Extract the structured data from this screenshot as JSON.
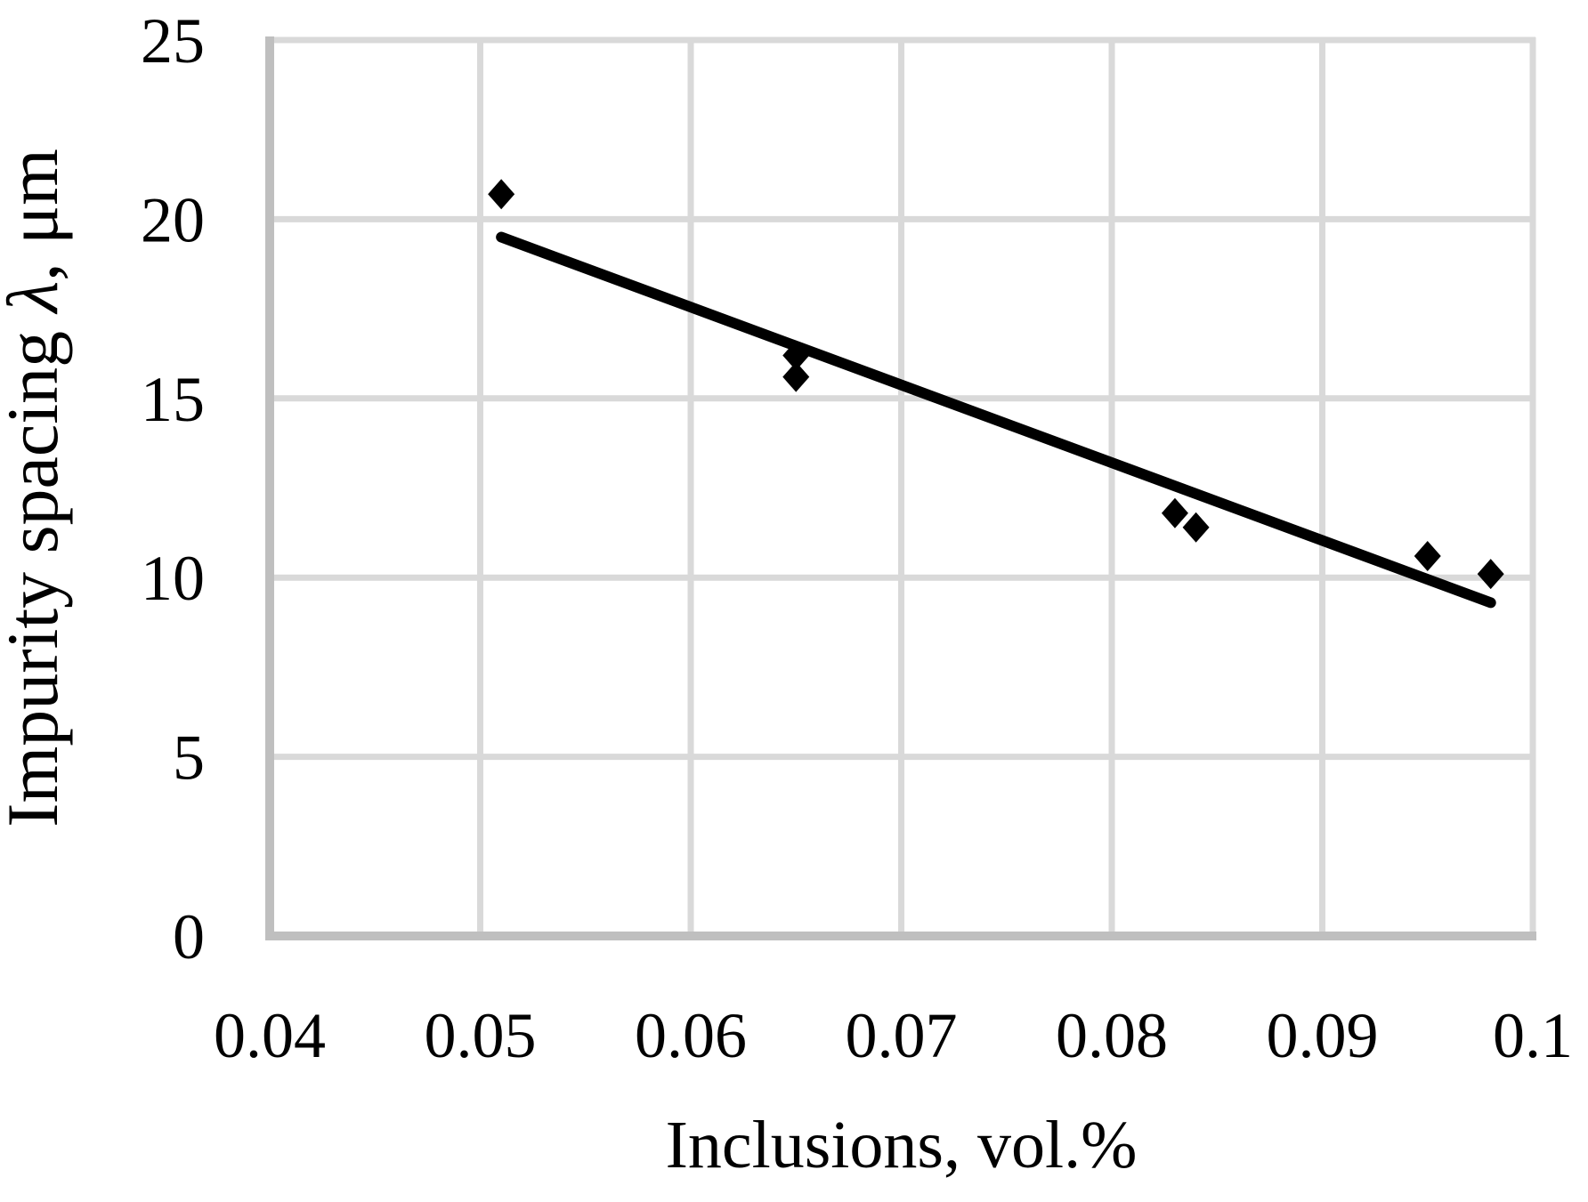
{
  "chart_data": {
    "type": "scatter",
    "title": "",
    "xlabel": "Inclusions, vol.%",
    "ylabel": "Impurity spacing λ, μm",
    "ylabel_parts": {
      "prefix": "Impurity spacing ",
      "lambda": "λ",
      "suffix": ", μm"
    },
    "points": [
      {
        "x": 0.051,
        "y": 20.7
      },
      {
        "x": 0.065,
        "y": 16.2
      },
      {
        "x": 0.065,
        "y": 15.6
      },
      {
        "x": 0.083,
        "y": 11.8
      },
      {
        "x": 0.084,
        "y": 11.4
      },
      {
        "x": 0.095,
        "y": 10.6
      },
      {
        "x": 0.098,
        "y": 10.1
      }
    ],
    "trendline": {
      "x1": 0.051,
      "y1": 19.5,
      "x2": 0.098,
      "y2": 9.3
    },
    "xlim": [
      0.04,
      0.1
    ],
    "ylim": [
      0,
      25
    ],
    "xticks": [
      "0.04",
      "0.05",
      "0.06",
      "0.07",
      "0.08",
      "0.09",
      "0.1"
    ],
    "xtick_values": [
      0.04,
      0.05,
      0.06,
      0.07,
      0.08,
      0.09,
      0.1
    ],
    "yticks": [
      "0",
      "5",
      "10",
      "15",
      "20",
      "25"
    ],
    "ytick_values": [
      0,
      5,
      10,
      15,
      20,
      25
    ],
    "grid": true,
    "legend": "none",
    "marker_shape": "diamond",
    "colors": {
      "marker": "#000000",
      "trendline": "#000000",
      "gridline": "#d9d9d9",
      "axis_line": "#bfbfbf",
      "background": "#ffffff",
      "text": "#000000"
    }
  }
}
